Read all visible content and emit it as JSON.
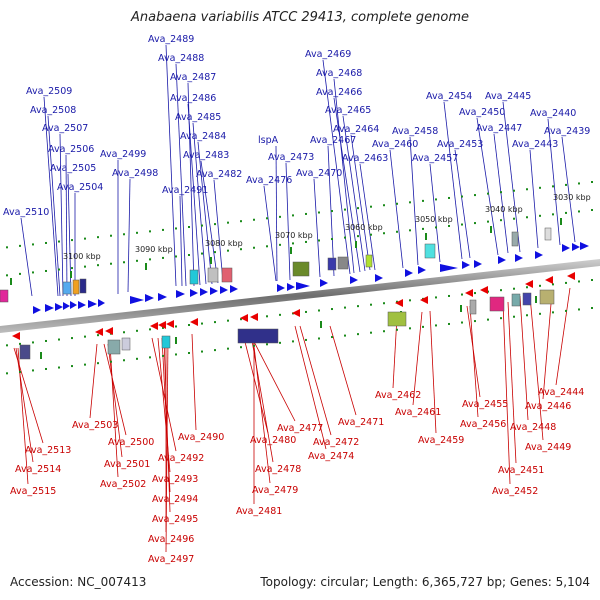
{
  "title": "Anabaena variabilis ATCC 29413, complete genome",
  "accession": "Accession: NC_007413",
  "summary": "Topology: circular; Length: 6,365,727 bp; Genes: 5,104",
  "colors": {
    "forward": "#1010e0",
    "reverse": "#e80000",
    "backbone": "#888888",
    "tick": "#1a8a1a",
    "label_forward": "#1a1aa8",
    "label_reverse": "#c80000"
  },
  "scale_ticks": [
    "3100 kbp",
    "3090 kbp",
    "3080 kbp",
    "3070 kbp",
    "3060 kbp",
    "3050 kbp",
    "3040 kbp",
    "3030 kbp"
  ],
  "forward_genes": [
    "Ava_2510",
    "Ava_2509",
    "Ava_2508",
    "Ava_2507",
    "Ava_2506",
    "Ava_2505",
    "Ava_2504",
    "Ava_2499",
    "Ava_2498",
    "Ava_2489",
    "Ava_2488",
    "Ava_2487",
    "Ava_2486",
    "Ava_2485",
    "Ava_2484",
    "Ava_2483",
    "Ava_2491",
    "Ava_2482",
    "Ava_2476",
    "lspA",
    "Ava_2473",
    "Ava_2469",
    "Ava_2468",
    "Ava_2466",
    "Ava_2465",
    "Ava_2467",
    "Ava_2470",
    "Ava_2464",
    "Ava_2463",
    "Ava_2460",
    "Ava_2458",
    "Ava_2457",
    "Ava_2454",
    "Ava_2453",
    "Ava_2450",
    "Ava_2445",
    "Ava_2447",
    "Ava_2440",
    "Ava_2443",
    "Ava_2439"
  ],
  "reverse_genes": [
    "Ava_2513",
    "Ava_2514",
    "Ava_2515",
    "Ava_2503",
    "Ava_2500",
    "Ava_2501",
    "Ava_2502",
    "Ava_2492",
    "Ava_2493",
    "Ava_2494",
    "Ava_2495",
    "Ava_2496",
    "Ava_2497",
    "Ava_2490",
    "Ava_2480",
    "Ava_2477",
    "Ava_2478",
    "Ava_2479",
    "Ava_2481",
    "Ava_2474",
    "Ava_2472",
    "Ava_2471",
    "Ava_2462",
    "Ava_2461",
    "Ava_2459",
    "Ava_2455",
    "Ava_2456",
    "Ava_2446",
    "Ava_2448",
    "Ava_2449",
    "Ava_2451",
    "Ava_2452",
    "Ava_2444"
  ]
}
